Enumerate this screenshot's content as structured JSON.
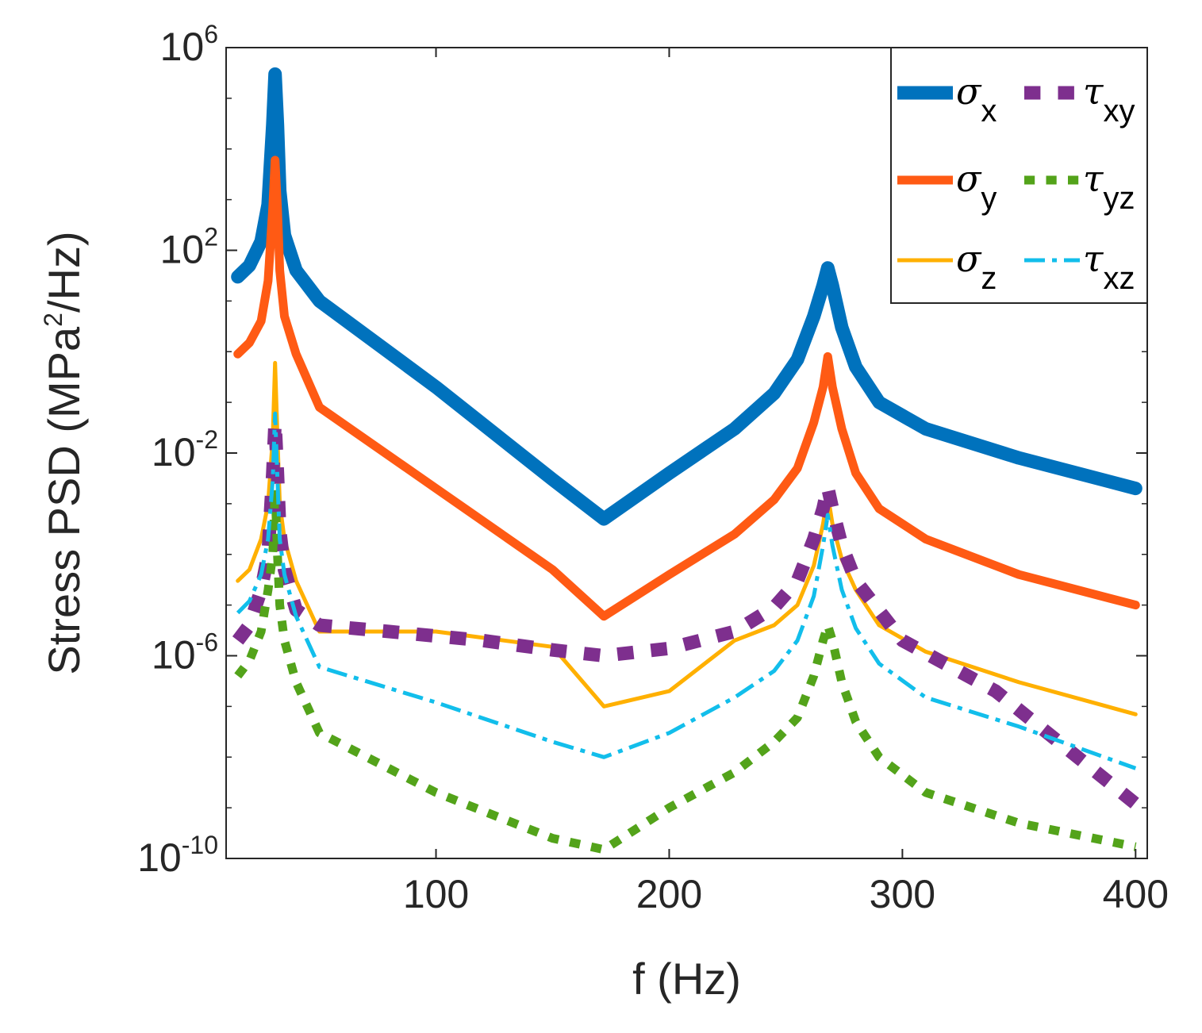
{
  "chart_data": {
    "type": "line",
    "title": "",
    "xlabel": "f (Hz)",
    "ylabel": "Stress PSD (MPa²/Hz)",
    "ylabel_parts": {
      "before": "Stress PSD (MPa",
      "sup": "2",
      "after": "/Hz)"
    },
    "xlim": [
      10,
      405
    ],
    "ylim": [
      1e-10,
      1000000.0
    ],
    "yscale": "log",
    "grid": false,
    "legend_position": "top-right",
    "xticks": [
      {
        "value": 100,
        "label": "100"
      },
      {
        "value": 200,
        "label": "200"
      },
      {
        "value": 300,
        "label": "300"
      },
      {
        "value": 400,
        "label": "400"
      }
    ],
    "yticks": [
      {
        "value": 1e-10,
        "base": "10",
        "exp": "-10"
      },
      {
        "value": 1e-06,
        "base": "10",
        "exp": "-6"
      },
      {
        "value": 0.01,
        "base": "10",
        "exp": "-2"
      },
      {
        "value": 100,
        "base": "10",
        "exp": "2"
      },
      {
        "value": 1000000,
        "base": "10",
        "exp": "6"
      }
    ],
    "series": [
      {
        "name": "σx",
        "symbol": "σ",
        "sub": "x",
        "color": "#0072BD",
        "style": "solid",
        "weight": "heavy",
        "x": [
          15,
          20,
          25,
          28,
          30,
          31,
          32,
          33,
          35,
          40,
          50,
          100,
          150,
          172,
          200,
          228,
          245,
          255,
          262,
          266,
          268,
          270,
          274,
          280,
          290,
          310,
          350,
          400
        ],
        "y": [
          30,
          50,
          150,
          800,
          30000,
          300000,
          30000,
          1500,
          200,
          40,
          10,
          0.2,
          0.003,
          0.0005,
          0.004,
          0.03,
          0.15,
          0.7,
          5,
          20,
          45,
          20,
          3,
          0.5,
          0.1,
          0.03,
          0.008,
          0.002
        ]
      },
      {
        "name": "σy",
        "symbol": "σ",
        "sub": "y",
        "color": "#FF5A14",
        "style": "solid",
        "weight": "bold",
        "x": [
          15,
          20,
          25,
          28,
          30,
          31,
          32,
          33,
          35,
          40,
          50,
          100,
          150,
          172,
          200,
          228,
          245,
          255,
          262,
          266,
          268,
          270,
          274,
          280,
          290,
          310,
          350,
          400
        ],
        "y": [
          0.9,
          1.5,
          4,
          25,
          700,
          6000,
          700,
          40,
          5,
          0.9,
          0.08,
          0.002,
          5e-05,
          6e-06,
          4e-05,
          0.00025,
          0.0012,
          0.005,
          0.04,
          0.2,
          0.8,
          0.2,
          0.03,
          0.004,
          0.0008,
          0.0002,
          4e-05,
          1e-05
        ]
      },
      {
        "name": "σz",
        "symbol": "σ",
        "sub": "z",
        "color": "#FFB000",
        "style": "solid",
        "weight": "normal",
        "x": [
          15,
          20,
          25,
          28,
          30,
          31,
          32,
          33,
          35,
          40,
          50,
          100,
          150,
          172,
          200,
          228,
          245,
          255,
          262,
          266,
          268,
          270,
          274,
          280,
          290,
          310,
          350,
          400
        ],
        "y": [
          3e-05,
          5e-05,
          0.0002,
          0.001,
          0.02,
          0.6,
          0.02,
          0.001,
          0.0002,
          3e-05,
          3e-06,
          3e-06,
          1.5e-06,
          1e-07,
          2e-07,
          2e-06,
          4e-06,
          1e-05,
          6e-05,
          0.0004,
          0.0015,
          0.0004,
          8e-05,
          2e-05,
          4e-06,
          1.2e-06,
          3e-07,
          7e-08
        ]
      },
      {
        "name": "τxy",
        "symbol": "τ",
        "sub": "xy",
        "color": "#7E2F8E",
        "style": "dotted",
        "weight": "heavy",
        "x": [
          15,
          20,
          25,
          28,
          30,
          31,
          32,
          33,
          35,
          40,
          50,
          80,
          120,
          150,
          172,
          200,
          228,
          245,
          255,
          262,
          266,
          268,
          270,
          274,
          280,
          300,
          340,
          400
        ],
        "y": [
          2e-06,
          4e-06,
          2e-05,
          0.0001,
          0.004,
          0.04,
          0.004,
          0.0003,
          5e-05,
          8e-06,
          4e-06,
          3e-06,
          2e-06,
          1.3e-06,
          1e-06,
          1.4e-06,
          3e-06,
          9e-06,
          3e-05,
          0.0002,
          0.0008,
          0.0021,
          0.0008,
          0.00015,
          3e-05,
          2e-06,
          2e-07,
          1.2e-09
        ]
      },
      {
        "name": "τyz",
        "symbol": "τ",
        "sub": "yz",
        "color": "#53A31A",
        "style": "dotted",
        "weight": "bold",
        "x": [
          15,
          20,
          25,
          28,
          30,
          31,
          32,
          33,
          35,
          40,
          50,
          100,
          150,
          172,
          200,
          228,
          245,
          255,
          262,
          266,
          268,
          270,
          274,
          280,
          290,
          310,
          350,
          400
        ],
        "y": [
          4e-07,
          8e-07,
          3e-06,
          2e-05,
          0.0001,
          0.002,
          0.0001,
          1e-05,
          2e-06,
          3e-07,
          3e-08,
          2e-09,
          2.5e-10,
          1.5e-10,
          1e-09,
          5e-09,
          2e-08,
          6e-08,
          4e-07,
          2e-06,
          4e-06,
          2e-06,
          3e-07,
          5e-08,
          1e-08,
          2e-09,
          5e-10,
          1.7e-10
        ]
      },
      {
        "name": "τxz",
        "symbol": "τ",
        "sub": "xz",
        "color": "#12BEEB",
        "style": "dashdot",
        "weight": "normal",
        "x": [
          15,
          20,
          25,
          28,
          30,
          31,
          32,
          33,
          35,
          40,
          50,
          100,
          150,
          172,
          200,
          228,
          245,
          255,
          262,
          266,
          268,
          270,
          274,
          280,
          290,
          310,
          350,
          400
        ],
        "y": [
          7e-06,
          1.2e-05,
          4e-05,
          0.0002,
          0.003,
          0.06,
          0.003,
          0.0002,
          4e-05,
          6e-06,
          6e-07,
          1.2e-07,
          2e-08,
          1e-08,
          3e-08,
          1.5e-07,
          5e-07,
          2e-06,
          1.5e-05,
          0.00015,
          0.0006,
          0.00015,
          2e-05,
          3.5e-06,
          7e-07,
          1.5e-07,
          4e-08,
          6e-09
        ]
      }
    ]
  }
}
